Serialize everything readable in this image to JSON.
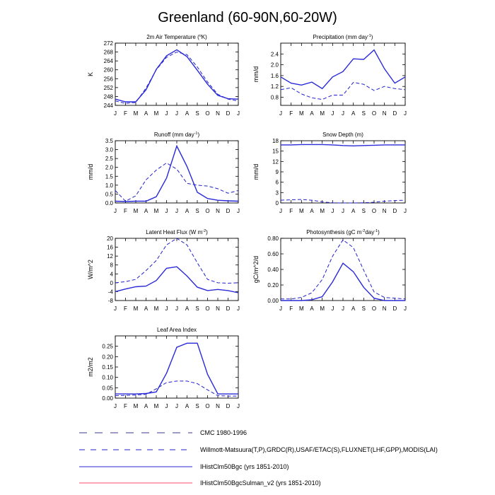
{
  "title": "Greenland (60-90N,60-20W)",
  "months": [
    "J",
    "F",
    "M",
    "A",
    "M",
    "J",
    "J",
    "A",
    "S",
    "O",
    "N",
    "D",
    "J"
  ],
  "colors": {
    "cmc": "#3a3a8c",
    "obs": "#2222cc",
    "run1": "#2a2ad8",
    "run2": "#ff4d6d"
  },
  "legend": [
    {
      "key": "cmc",
      "style": "long-dash",
      "label": "CMC 1980-1996"
    },
    {
      "key": "obs",
      "style": "dash",
      "label": "Willmott-Matsuura(T,P),GRDC(R),USAF/ETAC(S),FLUXNET(LHF,GPP),MODIS(LAI)"
    },
    {
      "key": "run1",
      "style": "solid",
      "label": "IHistClm50Bgc (yrs 1851-2010)"
    },
    {
      "key": "run2",
      "style": "solid",
      "label": "IHistClm50BgcSulman_v2 (yrs 1851-2010)"
    }
  ],
  "chart_data": [
    {
      "type": "line",
      "title": "2m Air Temperature (°K)",
      "title_parts": [
        "2m Air Temperature (",
        "o",
        "K)"
      ],
      "ylabel": "K",
      "ylim": [
        244,
        272
      ],
      "yticks": [
        "244",
        "248",
        "252",
        "256",
        "260",
        "264",
        "268",
        "272"
      ],
      "ytick_values": [
        244,
        248,
        252,
        256,
        260,
        264,
        268,
        272
      ],
      "series": [
        {
          "key": "obs",
          "dash": true,
          "values": [
            246.0,
            244.9,
            245.3,
            251.8,
            260.0,
            265.6,
            268.0,
            266.8,
            261.3,
            254.5,
            249.0,
            246.8,
            246.0
          ]
        },
        {
          "key": "run1",
          "dash": false,
          "values": [
            246.8,
            245.6,
            245.6,
            251.0,
            260.2,
            266.3,
            269.0,
            265.9,
            259.8,
            253.5,
            248.5,
            247.0,
            246.8
          ]
        }
      ]
    },
    {
      "type": "line",
      "title": "Precipitation (mm day-1)",
      "title_parts": [
        "Precipitation (mm day",
        "-1",
        ")"
      ],
      "ylabel": "mm/d",
      "ylim": [
        0.5,
        2.8
      ],
      "yticks": [
        "0.8",
        "1.2",
        "1.6",
        "2.0",
        "2.4"
      ],
      "ytick_values": [
        0.8,
        1.2,
        1.6,
        2.0,
        2.4
      ],
      "series": [
        {
          "key": "obs",
          "dash": true,
          "values": [
            1.08,
            1.15,
            0.92,
            0.78,
            0.72,
            0.88,
            0.88,
            1.35,
            1.28,
            1.05,
            1.2,
            1.12,
            1.08
          ]
        },
        {
          "key": "run1",
          "dash": false,
          "values": [
            1.55,
            1.32,
            1.25,
            1.36,
            1.12,
            1.55,
            1.75,
            2.22,
            2.2,
            2.55,
            1.85,
            1.32,
            1.55
          ]
        }
      ]
    },
    {
      "type": "line",
      "title": "Runoff (mm day-1)",
      "title_parts": [
        "Runoff (mm day",
        "-1",
        ")"
      ],
      "ylabel": "mm/d",
      "ylim": [
        0,
        3.5
      ],
      "yticks": [
        "0.0",
        "0.5",
        "1.0",
        "1.5",
        "2.0",
        "2.5",
        "3.0",
        "3.5"
      ],
      "ytick_values": [
        0,
        0.5,
        1.0,
        1.5,
        2.0,
        2.5,
        3.0,
        3.5
      ],
      "series": [
        {
          "key": "obs",
          "dash": true,
          "values": [
            0.7,
            0.1,
            0.4,
            1.3,
            1.85,
            2.25,
            1.9,
            1.1,
            1.0,
            0.95,
            0.8,
            0.55,
            0.7
          ]
        },
        {
          "key": "run1",
          "dash": false,
          "values": [
            0.1,
            0.08,
            0.1,
            0.1,
            0.35,
            1.4,
            3.2,
            2.05,
            0.6,
            0.25,
            0.15,
            0.12,
            0.1
          ]
        }
      ]
    },
    {
      "type": "line",
      "title": "Snow Depth (m)",
      "title_parts": [
        "Snow Depth (m)"
      ],
      "ylabel": "mm/d",
      "ylim": [
        0,
        18
      ],
      "yticks": [
        "0",
        "3",
        "6",
        "9",
        "12",
        "15",
        "18"
      ],
      "ytick_values": [
        0,
        3,
        6,
        9,
        12,
        15,
        18
      ],
      "series": [
        {
          "key": "obs",
          "dash": true,
          "values": [
            0.8,
            0.9,
            1.0,
            0.8,
            0.3,
            0.05,
            0.0,
            0.0,
            0.05,
            0.2,
            0.5,
            0.7,
            0.8
          ]
        },
        {
          "key": "run1",
          "dash": false,
          "values": [
            16.8,
            16.8,
            16.9,
            16.9,
            16.9,
            16.8,
            16.6,
            16.5,
            16.6,
            16.7,
            16.8,
            16.8,
            16.8
          ]
        }
      ]
    },
    {
      "type": "line",
      "title": "Latent Heat Flux (W m-2)",
      "title_parts": [
        "Latent Heat Flux (W m",
        "-2",
        ")"
      ],
      "ylabel": "W/m^2",
      "ylim": [
        -8,
        20
      ],
      "yticks": [
        "-8",
        "-4",
        "0",
        "4",
        "8",
        "12",
        "16",
        "20"
      ],
      "ytick_values": [
        -8,
        -4,
        0,
        4,
        8,
        12,
        16,
        20
      ],
      "series": [
        {
          "key": "obs",
          "dash": true,
          "values": [
            0.0,
            0.5,
            1.5,
            5.5,
            10.0,
            17.0,
            20.0,
            17.0,
            9.0,
            1.5,
            0.0,
            -0.2,
            0.0
          ]
        },
        {
          "key": "run1",
          "dash": false,
          "values": [
            -4.0,
            -2.8,
            -1.8,
            -1.5,
            1.0,
            6.5,
            7.2,
            3.0,
            -2.0,
            -3.5,
            -3.0,
            -3.5,
            -4.5
          ]
        }
      ]
    },
    {
      "type": "line",
      "title": "Photosynthesis (gC m-2day-1)",
      "title_parts": [
        "Photosynthesis (gC m",
        "-2",
        "day",
        "-1",
        ")"
      ],
      "ylabel": "gC/m^2/d",
      "ylim": [
        0,
        0.8
      ],
      "yticks": [
        "0.00",
        "0.20",
        "0.40",
        "0.60",
        "0.80"
      ],
      "ytick_values": [
        0,
        0.2,
        0.4,
        0.6,
        0.8
      ],
      "series": [
        {
          "key": "obs",
          "dash": true,
          "values": [
            0.02,
            0.02,
            0.04,
            0.1,
            0.27,
            0.57,
            0.78,
            0.68,
            0.39,
            0.11,
            0.04,
            0.03,
            0.02
          ]
        },
        {
          "key": "run1",
          "dash": false,
          "values": [
            0.0,
            0.0,
            0.0,
            0.01,
            0.05,
            0.24,
            0.48,
            0.37,
            0.17,
            0.03,
            0.0,
            0.0,
            0.0
          ]
        }
      ]
    },
    {
      "type": "line",
      "title": "Leaf Area Index",
      "title_parts": [
        "Leaf Area Index"
      ],
      "ylabel": "m2/m2",
      "ylim": [
        0,
        0.3
      ],
      "yticks": [
        "0.00",
        "0.05",
        "0.10",
        "0.15",
        "0.20",
        "0.25"
      ],
      "ytick_values": [
        0,
        0.05,
        0.1,
        0.15,
        0.2,
        0.25
      ],
      "series": [
        {
          "key": "obs",
          "dash": true,
          "values": [
            0.012,
            0.013,
            0.015,
            0.018,
            0.045,
            0.075,
            0.082,
            0.082,
            0.07,
            0.04,
            0.012,
            0.01,
            0.01
          ]
        },
        {
          "key": "run1",
          "dash": false,
          "values": [
            0.02,
            0.02,
            0.02,
            0.022,
            0.03,
            0.12,
            0.245,
            0.265,
            0.265,
            0.115,
            0.02,
            0.02,
            0.02
          ]
        }
      ]
    }
  ]
}
